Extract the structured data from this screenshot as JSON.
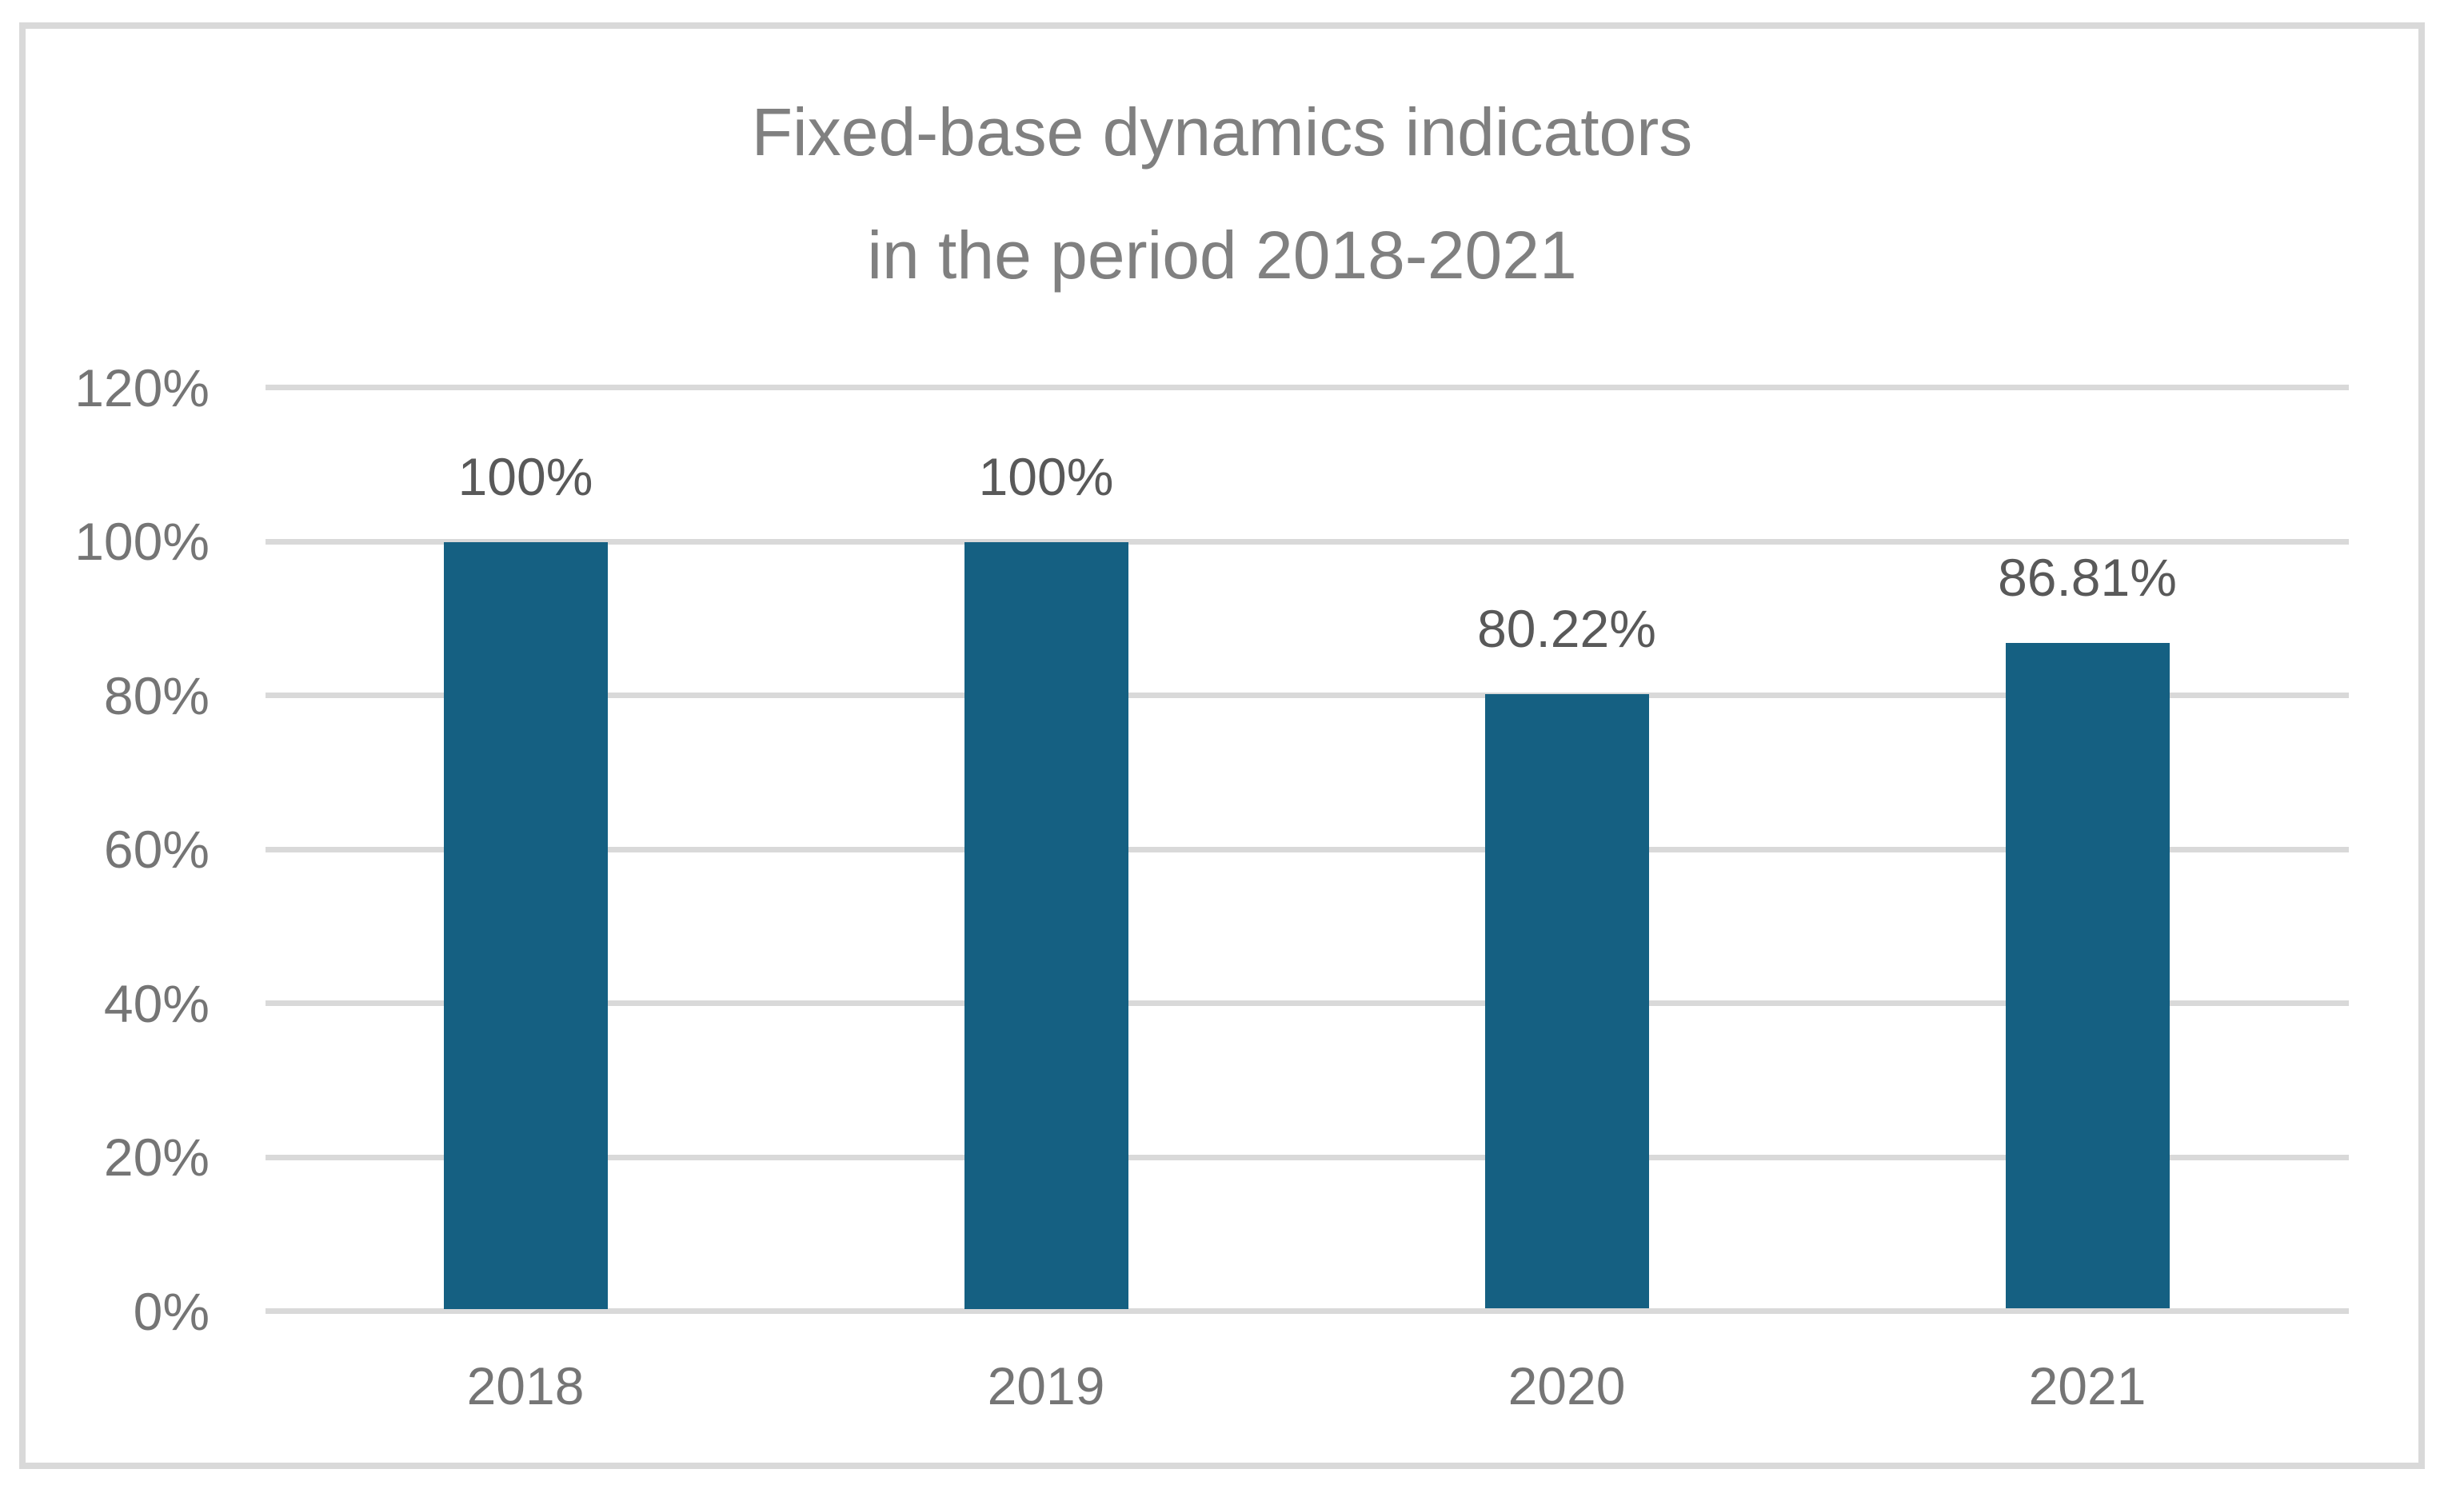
{
  "chart_data": {
    "type": "bar",
    "title_line1": "Fixed-base dynamics indicators",
    "title_line2": "in the period 2018-2021",
    "categories": [
      "2018",
      "2019",
      "2020",
      "2021"
    ],
    "values": [
      100,
      100,
      80.22,
      86.81
    ],
    "data_labels": [
      "100%",
      "100%",
      "80.22%",
      "86.81%"
    ],
    "y_tick_labels": [
      "120%",
      "100%",
      "80%",
      "60%",
      "40%",
      "20%",
      "0%"
    ],
    "y_tick_values": [
      120,
      100,
      80,
      60,
      40,
      20,
      0
    ],
    "xlabel": "",
    "ylabel": "",
    "ylim": [
      0,
      120
    ],
    "grid": true,
    "legend_position": "none",
    "bar_color": "#156082",
    "gridline_color": "#d9d9d9",
    "frame_color": "#d9d9d9",
    "title_color": "#808080",
    "tick_label_color": "#757575",
    "data_label_color": "#595959"
  }
}
